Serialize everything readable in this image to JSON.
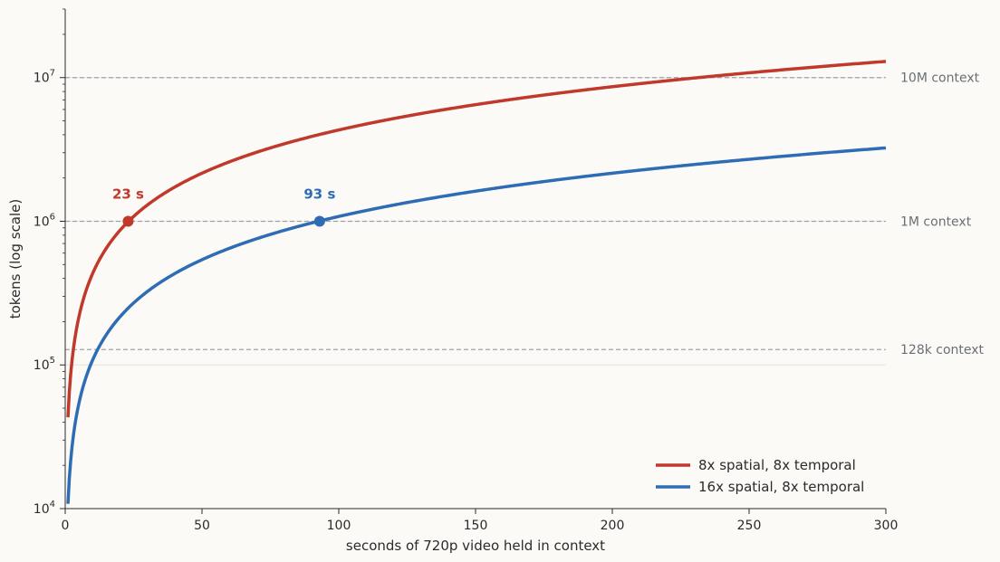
{
  "chart_data": {
    "type": "line",
    "title": "",
    "xlabel": "seconds of 720p video held in context",
    "ylabel": "tokens (log scale)",
    "xlim": [
      0,
      300
    ],
    "ylim": [
      10000,
      30000000
    ],
    "yscale": "log",
    "x_ticks": [
      "0",
      "50",
      "100",
      "150",
      "200",
      "250",
      "300"
    ],
    "y_ticks": [
      {
        "base": "10",
        "exp": "4"
      },
      {
        "base": "10",
        "exp": "5"
      },
      {
        "base": "10",
        "exp": "6"
      },
      {
        "base": "10",
        "exp": "7"
      }
    ],
    "grid": "y-major",
    "legend_position": "bottom-right",
    "series": [
      {
        "name": "8x spatial, 8x temporal",
        "color": "#c0392b",
        "tokens_per_second": 43200,
        "x_start": 1,
        "x_end": 300
      },
      {
        "name": "16x spatial, 8x temporal",
        "color": "#2e6db4",
        "tokens_per_second": 10800,
        "x_start": 1,
        "x_end": 300
      }
    ],
    "reference_lines": [
      {
        "label": "10M context",
        "y": 10000000
      },
      {
        "label": "1M context",
        "y": 1000000
      },
      {
        "label": "128k context",
        "y": 128000
      }
    ],
    "annotations": [
      {
        "label": "23 s",
        "x": 23,
        "y": 1000000,
        "color": "#c0392b"
      },
      {
        "label": "93 s",
        "x": 93,
        "y": 1000000,
        "color": "#2e6db4"
      }
    ]
  }
}
